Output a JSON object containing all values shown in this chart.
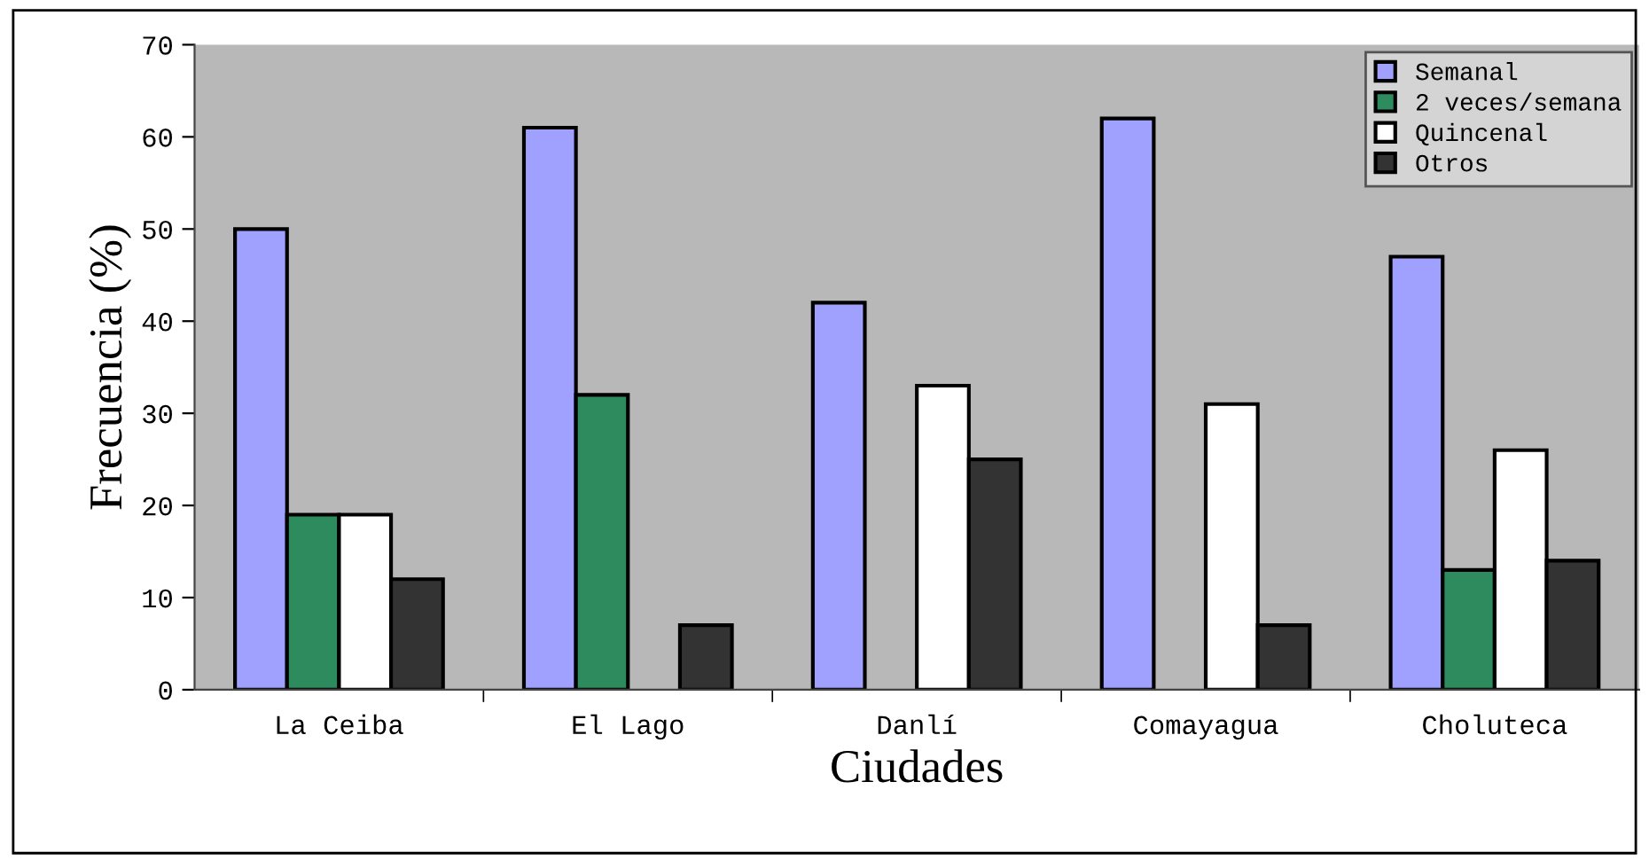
{
  "chart_data": {
    "type": "bar",
    "xlabel": "Ciudades",
    "ylabel": "Frecuencia (%)",
    "categories": [
      "La Ceiba",
      "El Lago",
      "Danlí",
      "Comayagua",
      "Choluteca"
    ],
    "series": [
      {
        "name": "Semanal",
        "color": "#a0a0ff",
        "values": [
          50,
          61,
          42,
          62,
          47
        ]
      },
      {
        "name": "2 veces/semana",
        "color": "#2e8b5e",
        "values": [
          19,
          32,
          null,
          null,
          13
        ]
      },
      {
        "name": "Quincenal",
        "color": "#ffffff",
        "values": [
          19,
          null,
          33,
          31,
          26
        ]
      },
      {
        "name": "Otros",
        "color": "#333333",
        "values": [
          12,
          7,
          25,
          7,
          14
        ]
      }
    ],
    "ylim": [
      0,
      70
    ],
    "yticks": [
      0,
      10,
      20,
      30,
      40,
      50,
      60,
      70
    ],
    "grid": false,
    "legend": "top right"
  }
}
